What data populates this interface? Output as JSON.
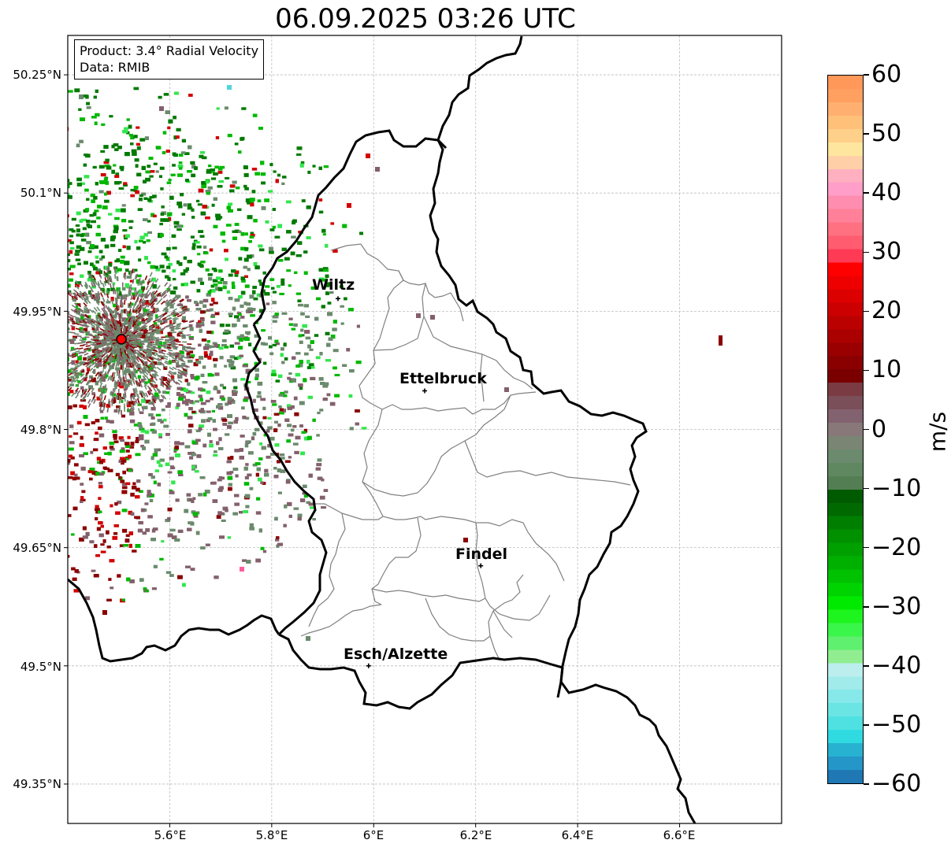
{
  "title": "06.09.2025 03:26 UTC",
  "info": {
    "product": "Product: 3.4° Radial Velocity",
    "source": "Data: RMIB"
  },
  "axes": {
    "lat_ticks": [
      "50.25°N",
      "50.1°N",
      "49.95°N",
      "49.8°N",
      "49.65°N",
      "49.5°N",
      "49.35°N"
    ],
    "lon_ticks": [
      "5.6°E",
      "5.8°E",
      "6°E",
      "6.2°E",
      "6.4°E",
      "6.6°E"
    ],
    "lat_range": [
      49.3,
      50.3
    ],
    "lon_range": [
      5.4,
      6.8
    ],
    "grid": true
  },
  "cities": [
    {
      "name": "Wiltz",
      "lon": 5.93,
      "lat": 49.966
    },
    {
      "name": "Ettelbruck",
      "lon": 6.1,
      "lat": 49.849
    },
    {
      "name": "Findel",
      "lon": 6.21,
      "lat": 49.627
    },
    {
      "name": "Esch/Alzette",
      "lon": 5.99,
      "lat": 49.5
    }
  ],
  "radar_site": {
    "lon": 5.505,
    "lat": 49.914
  },
  "colorbar": {
    "label": "m/s",
    "min": -60,
    "max": 60,
    "ticks": [
      "60",
      "50",
      "40",
      "30",
      "20",
      "10",
      "0",
      "−10",
      "−20",
      "−30",
      "−40",
      "−50",
      "−60"
    ],
    "colors_bottom_to_top": [
      "#1f77b4",
      "#2496c8",
      "#27b2d1",
      "#2fdbe0",
      "#4fe1e1",
      "#6ae5e4",
      "#86e8e8",
      "#a2ebeb",
      "#bdeeee",
      "#90ee90",
      "#5ef06e",
      "#3af54a",
      "#1ef51e",
      "#00ea00",
      "#00d400",
      "#00c200",
      "#00b000",
      "#00a000",
      "#009000",
      "#007e00",
      "#006a00",
      "#005a00",
      "#537e53",
      "#5f8860",
      "#6c8a6d",
      "#7a8574",
      "#88787a",
      "#82626e",
      "#7a4f5a",
      "#7b3b43",
      "#7a0000",
      "#8a0000",
      "#9a0000",
      "#aa0000",
      "#bb0000",
      "#cc0000",
      "#dd0000",
      "#ee0000",
      "#ff0000",
      "#ff3a55",
      "#ff5c70",
      "#ff7080",
      "#ff8098",
      "#ff8db0",
      "#ff9ec8",
      "#ffb0c0",
      "#ffcfa8",
      "#ffe69e",
      "#ffd08a",
      "#ffc07a",
      "#ffb070",
      "#ffa060",
      "#ff9858"
    ]
  },
  "velocity_colors": {
    "inbound_strong": "#007a00",
    "inbound": "#00b800",
    "inbound_light": "#33e64d",
    "near_zero_green": "#6b8a6d",
    "near_zero_red": "#83606b",
    "outbound": "#8b0000",
    "outbound_strong": "#d10000",
    "pink": "#ff5c9a",
    "cyan": "#4fd6dc"
  }
}
